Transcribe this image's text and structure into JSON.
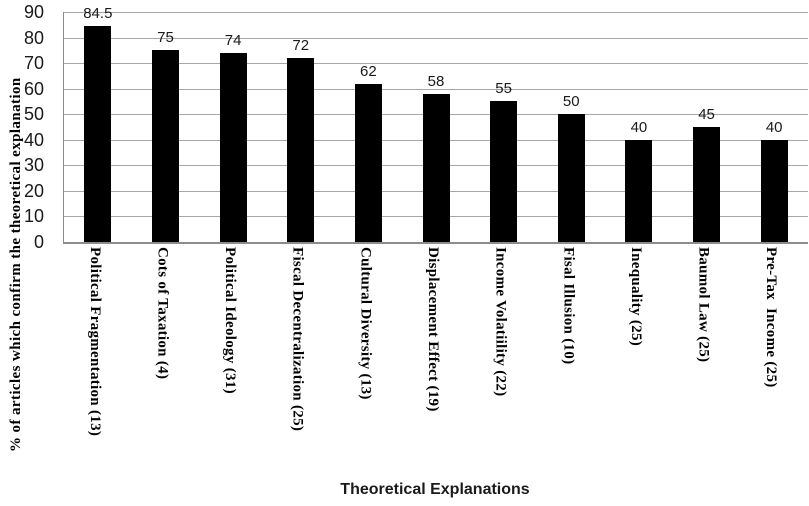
{
  "chart_data": {
    "type": "bar",
    "title": "",
    "xlabel": "Theoretical Explanations",
    "ylabel": "% of articles which confirm the theoretical explanation",
    "categories": [
      "Political Fragmentation (13)",
      "Cots of Taxation (4)",
      "Political Ideology (31)",
      "Fiscal Decentralization (25)",
      "Cultural Diversity (13)",
      "Displacement Effect (19)",
      "Income Volatiility (22)",
      "Fisal Illusion (10)",
      "Inequality (25)",
      "Baumol Law (25)",
      "Pre-Tax  Income (25)"
    ],
    "values": [
      84.5,
      75,
      74,
      72,
      62,
      58,
      55,
      50,
      40,
      45,
      40
    ],
    "value_labels": [
      "84.5",
      "75",
      "74",
      "72",
      "62",
      "58",
      "55",
      "50",
      "40",
      "45",
      "40"
    ],
    "ylim": [
      0,
      90
    ],
    "ytick_step": 10,
    "ytick_labels": [
      "0",
      "10",
      "20",
      "30",
      "40",
      "50",
      "60",
      "70",
      "80",
      "90"
    ],
    "grid": true,
    "legend_position": "none",
    "bar_color": "#000000",
    "gridline_color": "#a6a6a6",
    "axis_color": "#8c8c8c",
    "background_color": "#ffffff"
  }
}
